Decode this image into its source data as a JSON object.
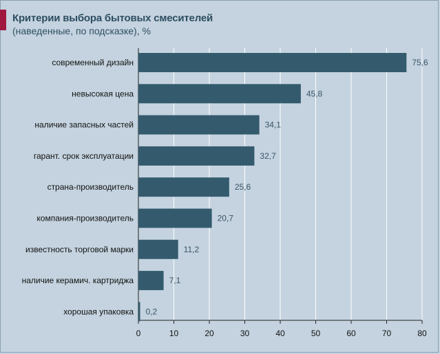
{
  "title": "Критерии выбора бытовых смесителей",
  "subtitle": "(наведенные, по подсказке), %",
  "colors": {
    "background": "#c4d3df",
    "bar": "#345a6e",
    "accent": "#a0183f",
    "grid": "#ffffff"
  },
  "chart_data": {
    "type": "bar",
    "orientation": "horizontal",
    "title": "Критерии выбора бытовых смесителей",
    "subtitle": "(наведенные, по подсказке), %",
    "categories": [
      "современный дизайн",
      "невысокая цена",
      "наличие запасных частей",
      "гарант. срок эксплуатации",
      "страна-производитель",
      "компания-производитель",
      "известность торговой марки",
      "наличие керамич. картриджа",
      "хорошая упаковка"
    ],
    "values": [
      75.6,
      45.8,
      34.1,
      32.7,
      25.6,
      20.7,
      11.2,
      7.1,
      0.2
    ],
    "value_labels": [
      "75,6",
      "45,8",
      "34,1",
      "32,7",
      "25,6",
      "20,7",
      "11,2",
      "7,1",
      "0,2"
    ],
    "xlim": [
      0,
      80
    ],
    "xticks": [
      0,
      10,
      20,
      30,
      40,
      50,
      60,
      70,
      80
    ],
    "grid": true,
    "legend": "none"
  }
}
